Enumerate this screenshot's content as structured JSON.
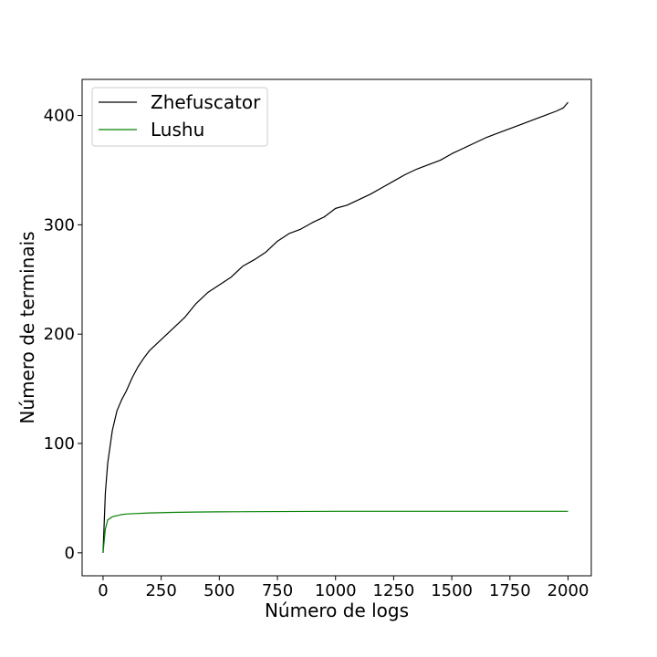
{
  "chart_data": {
    "type": "line",
    "title": "",
    "xlabel": "Número de logs",
    "ylabel": "Número de terminais",
    "xlim": [
      -90,
      2100
    ],
    "ylim": [
      -21,
      433
    ],
    "xticks": [
      0,
      250,
      500,
      750,
      1000,
      1250,
      1500,
      1750,
      2000
    ],
    "yticks": [
      0,
      100,
      200,
      300,
      400
    ],
    "grid": false,
    "legend_position": "top-left",
    "series": [
      {
        "name": "Zhefuscator",
        "color": "#000000",
        "x": [
          0,
          10,
          20,
          40,
          60,
          80,
          100,
          125,
          150,
          175,
          200,
          250,
          300,
          350,
          400,
          450,
          500,
          550,
          600,
          650,
          700,
          750,
          800,
          850,
          900,
          950,
          1000,
          1050,
          1100,
          1150,
          1200,
          1250,
          1300,
          1350,
          1400,
          1450,
          1500,
          1550,
          1600,
          1650,
          1700,
          1750,
          1800,
          1850,
          1900,
          1950,
          1980,
          2000
        ],
        "y": [
          0,
          55,
          82,
          112,
          130,
          140,
          148,
          160,
          170,
          178,
          185,
          195,
          205,
          215,
          228,
          238,
          245,
          252,
          262,
          268,
          275,
          285,
          292,
          296,
          302,
          307,
          315,
          318,
          323,
          328,
          334,
          340,
          346,
          351,
          355,
          359,
          365,
          370,
          375,
          380,
          384,
          388,
          392,
          396,
          400,
          404,
          407,
          412
        ]
      },
      {
        "name": "Lushu",
        "color": "#008000",
        "x": [
          0,
          10,
          20,
          40,
          60,
          80,
          100,
          150,
          200,
          300,
          400,
          500,
          750,
          1000,
          1250,
          1500,
          1750,
          2000
        ],
        "y": [
          0,
          22,
          30,
          33,
          34,
          35,
          35.5,
          36,
          36.5,
          37,
          37.3,
          37.5,
          37.8,
          38,
          38,
          38,
          38,
          38
        ]
      }
    ]
  }
}
